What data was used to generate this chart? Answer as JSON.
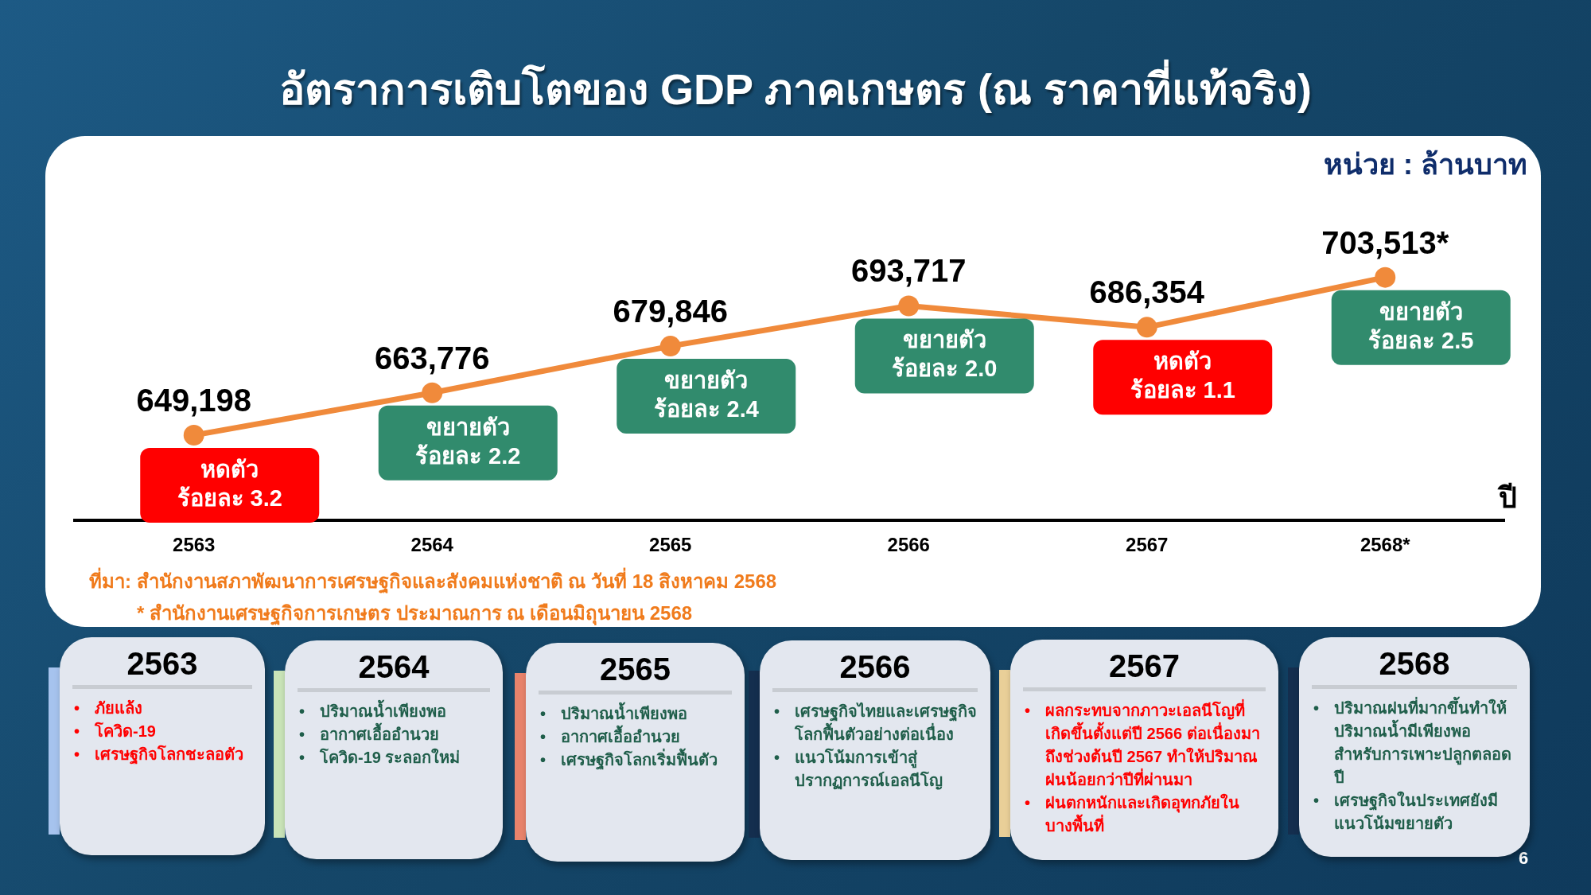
{
  "chart_data": {
    "type": "line",
    "title": "อัตราการเติบโตของ GDP ภาคเกษตร (ณ ราคาที่แท้จริง)",
    "xlabel": "ปี",
    "ylabel": "หน่วย : ล้านบาท",
    "categories": [
      "2563",
      "2564",
      "2565",
      "2566",
      "2567",
      "2568*"
    ],
    "series": [
      {
        "color": "#f08a3b",
        "values": [
          649198,
          663776,
          679846,
          693717,
          686354,
          703513
        ],
        "value_labels": [
          "649,198",
          "663,776",
          "679,846",
          "693,717",
          "686,354",
          "703,513*"
        ]
      }
    ],
    "marker": "circle",
    "line_style": "solid",
    "grid": false,
    "legend": false,
    "tick_labels": "x",
    "annotations": [
      {
        "text": "หดตัว\nร้อยละ 3.2",
        "x": "2563",
        "y": 649198
      },
      {
        "text": "ขยายตัว\nร้อยละ 2.2",
        "x": "2564",
        "y": 663776
      },
      {
        "text": "ขยายตัว\nร้อยละ 2.4",
        "x": "2565",
        "y": 679846
      },
      {
        "text": "ขยายตัว\nร้อยละ 2.0",
        "x": "2566",
        "y": 693717
      },
      {
        "text": "หดตัว\nร้อยละ 1.1",
        "x": "2567",
        "y": 686354
      },
      {
        "text": "ขยายตัว\nร้อยละ 2.5",
        "x": "2568*",
        "y": 703513
      },
      "ที่มา: สำนักงานสภาพัฒนาการเศรษฐกิจและสังคมแห่งชาติ ณ วันที่ 18 สิงหาคม 2568",
      "* สำนักงานเศรษฐกิจการเกษตร ประมาณการ ณ เดือนมิถุนายน 2568",
      "2563\n• ภัยแล้ง\n• โควิด-19\n• เศรษฐกิจโลกชะลอตัว",
      "2564\n• ปริมาณน้ำเพียงพอ\n• อากาศเอื้ออำนวย\n• โควิด-19 ระลอกใหม่",
      "2565\n• ปริมาณน้ำเพียงพอ\n• อากาศเอื้ออำนวย\n• เศรษฐกิจโลกเริ่มฟื้นตัว",
      "2566\n• เศรษฐกิจไทยและเศรษฐกิจโลกฟื้นตัวอย่างต่อเนื่อง\n• แนวโน้มการเข้าสู่ปรากฏการณ์เอลนีโญ",
      "2567\n• ผลกระทบจากภาวะเอลนีโญที่เกิดขึ้นตั้งแต่ปี 2566 ต่อเนื่องมาถึงช่วงต้นปี 2567 ทำให้ปริมาณฝนน้อยกว่าปีที่ผ่านมา\n• ฝนตกหนักและเกิดอุทกภัยในบางพื้นที่",
      "2568\n• ปริมาณฝนที่มากขึ้นทำให้ปริมาณน้ำมีเพียงพอสำหรับการเพาะปลูกตลอดปี\n• เศรษฐกิจในประเทศยังมีแนวโน้มขยายตัว",
      "6"
    ]
  }
}
